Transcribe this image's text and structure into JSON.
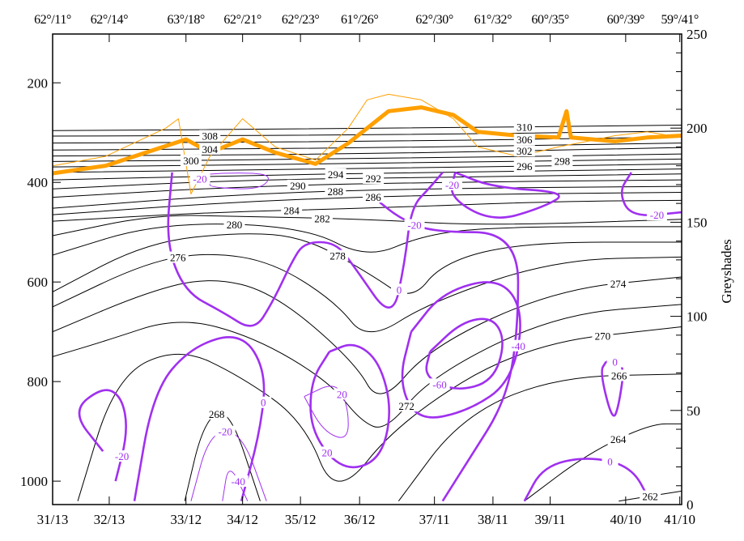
{
  "chart_data": {
    "type": "line",
    "title": "",
    "xlabel": "",
    "ylabel_left": "",
    "ylabel_right": "Greyshades",
    "x_tick_positions": [
      0,
      9,
      21.2,
      30.2,
      39.4,
      48.8,
      60.7,
      70,
      79.1,
      91.1,
      99.7
    ],
    "x_tick_labels": [
      "31/13",
      "32/13",
      "33/12",
      "34/12",
      "35/12",
      "36/12",
      "37/11",
      "38/11",
      "39/11",
      "40/10",
      "41/10"
    ],
    "top_tick_labels": [
      "62°/11°",
      "62°/14°",
      "63°/18°",
      "62°/21°",
      "62°/23°",
      "61°/26°",
      "62°/30°",
      "61°/32°",
      "60°/35°",
      "60°/39°",
      "59°/41°"
    ],
    "left_axis": {
      "range": [
        1047,
        102
      ],
      "ticks": [
        200,
        400,
        600,
        800,
        1000
      ]
    },
    "right_axis": {
      "range": [
        0,
        250
      ],
      "ticks": [
        0,
        50,
        100,
        150,
        200,
        250
      ]
    },
    "colors": {
      "theta": "#000000",
      "omega": "#a030f0",
      "orange": "#ffa000"
    },
    "isentropes": [
      {
        "value": 310,
        "li": 1,
        "pts": [
          [
            0,
            296
          ],
          [
            50,
            292
          ],
          [
            100,
            285
          ]
        ]
      },
      {
        "value": 308,
        "li": 0,
        "pts": [
          [
            0,
            307
          ],
          [
            50,
            305
          ],
          [
            100,
            297
          ]
        ]
      },
      {
        "value": 306,
        "li": 1,
        "pts": [
          [
            0,
            321
          ],
          [
            50,
            318
          ],
          [
            100,
            309
          ]
        ]
      },
      {
        "value": 304,
        "li": 0,
        "pts": [
          [
            0,
            335
          ],
          [
            50,
            331
          ],
          [
            100,
            321
          ]
        ]
      },
      {
        "value": 302,
        "li": 1,
        "pts": [
          [
            0,
            347
          ],
          [
            50,
            343
          ],
          [
            100,
            330
          ]
        ]
      },
      {
        "value": 300,
        "li": 0,
        "pts": [
          [
            0,
            358
          ],
          [
            50,
            353
          ],
          [
            100,
            343
          ]
        ]
      },
      {
        "value": 298,
        "li": 1,
        "pts": [
          [
            0,
            369
          ],
          [
            50,
            362
          ],
          [
            100,
            353
          ]
        ]
      },
      {
        "value": 296,
        "li": 2,
        "pts": [
          [
            0,
            380
          ],
          [
            50,
            372
          ],
          [
            100,
            363
          ]
        ]
      },
      {
        "value": 294,
        "li": 1,
        "pts": [
          [
            0,
            395
          ],
          [
            30,
            386
          ],
          [
            60,
            380
          ],
          [
            100,
            373
          ]
        ]
      },
      {
        "value": 292,
        "li": 1,
        "pts": [
          [
            0,
            413
          ],
          [
            30,
            395
          ],
          [
            60,
            390
          ],
          [
            100,
            383
          ]
        ]
      },
      {
        "value": 290,
        "li": 1,
        "pts": [
          [
            0,
            430
          ],
          [
            30,
            408
          ],
          [
            60,
            400
          ],
          [
            100,
            395
          ]
        ]
      },
      {
        "value": 288,
        "li": 1,
        "pts": [
          [
            0,
            452
          ],
          [
            30,
            423
          ],
          [
            60,
            412
          ],
          [
            100,
            408
          ]
        ]
      },
      {
        "value": 286,
        "li": 1,
        "pts": [
          [
            0,
            465
          ],
          [
            30,
            438
          ],
          [
            60,
            425
          ],
          [
            100,
            420
          ]
        ]
      },
      {
        "value": 284,
        "li": 1,
        "pts": [
          [
            0,
            478
          ],
          [
            25,
            460
          ],
          [
            50,
            452
          ],
          [
            80,
            438
          ],
          [
            100,
            436
          ]
        ]
      },
      {
        "value": 282,
        "li": 2,
        "pts": [
          [
            0,
            507
          ],
          [
            16,
            465
          ],
          [
            30,
            468
          ],
          [
            50,
            474
          ],
          [
            69,
            487
          ],
          [
            100,
            474
          ]
        ]
      },
      {
        "value": 280,
        "li": 1,
        "pts": [
          [
            0,
            546
          ],
          [
            17,
            480
          ],
          [
            40,
            488
          ],
          [
            50,
            554
          ],
          [
            59,
            505
          ],
          [
            71,
            489
          ],
          [
            100,
            489
          ]
        ]
      },
      {
        "value": 278,
        "li": 3,
        "pts": [
          [
            0,
            620
          ],
          [
            15,
            520
          ],
          [
            30,
            500
          ],
          [
            40,
            510
          ],
          [
            50,
            580
          ],
          [
            57,
            640
          ],
          [
            62,
            560
          ],
          [
            75,
            520
          ],
          [
            100,
            520
          ]
        ]
      },
      {
        "value": 276,
        "li": 1,
        "pts": [
          [
            0,
            650
          ],
          [
            15,
            560
          ],
          [
            25,
            540
          ],
          [
            35,
            560
          ],
          [
            45,
            640
          ],
          [
            50,
            720
          ],
          [
            60,
            640
          ],
          [
            80,
            555
          ],
          [
            100,
            550
          ]
        ]
      },
      {
        "value": 274,
        "li": 7,
        "pts": [
          [
            0,
            700
          ],
          [
            15,
            620
          ],
          [
            25,
            590
          ],
          [
            35,
            620
          ],
          [
            48,
            760
          ],
          [
            52,
            850
          ],
          [
            60,
            730
          ],
          [
            80,
            615
          ],
          [
            100,
            590
          ]
        ]
      },
      {
        "value": 272,
        "li": 6,
        "pts": [
          [
            0,
            750
          ],
          [
            8,
            720
          ],
          [
            20,
            670
          ],
          [
            32,
            710
          ],
          [
            44,
            800
          ],
          [
            49,
            880
          ],
          [
            53,
            900
          ],
          [
            60,
            790
          ],
          [
            80,
            665
          ],
          [
            100,
            645
          ]
        ]
      },
      {
        "value": 270,
        "li": 7,
        "pts": [
          [
            4,
            1040
          ],
          [
            10,
            790
          ],
          [
            20,
            730
          ],
          [
            30,
            790
          ],
          [
            40,
            880
          ],
          [
            45,
            1040
          ],
          [
            55,
            880
          ],
          [
            75,
            725
          ],
          [
            100,
            690
          ]
        ]
      },
      {
        "value": 268,
        "li": 1,
        "pts": [
          [
            21,
            1040
          ],
          [
            24,
            880
          ],
          [
            28,
            850
          ],
          [
            33,
            1040
          ]
        ]
      },
      {
        "value": 266,
        "li": 3,
        "pts": [
          [
            55,
            1040
          ],
          [
            65,
            870
          ],
          [
            80,
            790
          ],
          [
            100,
            785
          ]
        ]
      },
      {
        "value": 264,
        "li": 1,
        "pts": [
          [
            75,
            1040
          ],
          [
            85,
            945
          ],
          [
            95,
            885
          ],
          [
            100,
            885
          ]
        ]
      },
      {
        "value": 262,
        "li": 1,
        "pts": [
          [
            90,
            1040
          ],
          [
            100,
            1020
          ]
        ]
      }
    ],
    "omega_contours": [
      {
        "value": "0",
        "thick": true,
        "li": 10,
        "pts": [
          [
            19,
            380
          ],
          [
            18,
            520
          ],
          [
            21,
            620
          ],
          [
            27,
            660
          ],
          [
            32,
            700
          ],
          [
            35,
            640
          ],
          [
            38,
            560
          ],
          [
            40,
            520
          ],
          [
            45,
            520
          ],
          [
            48,
            570
          ],
          [
            54,
            680
          ],
          [
            56,
            560
          ],
          [
            57,
            450
          ],
          [
            60,
            410
          ],
          [
            62,
            380
          ]
        ]
      },
      {
        "value": "0",
        "thick": true,
        "li": 1,
        "pts": [
          [
            30,
            1040
          ],
          [
            33,
            900
          ],
          [
            34,
            780
          ],
          [
            30,
            700
          ],
          [
            22,
            730
          ],
          [
            16,
            820
          ],
          [
            13,
            1040
          ]
        ]
      },
      {
        "value": "-20",
        "thick": true,
        "li": 5,
        "pts": [
          [
            8,
            940
          ],
          [
            3,
            860
          ],
          [
            8,
            810
          ],
          [
            11,
            830
          ],
          [
            12,
            900
          ],
          [
            10,
            1000
          ]
        ]
      },
      {
        "value": "20",
        "thick": true,
        "li": 5,
        "pts": [
          [
            44,
            740
          ],
          [
            48,
            720
          ],
          [
            52,
            760
          ],
          [
            54,
            860
          ],
          [
            52,
            960
          ],
          [
            46,
            980
          ],
          [
            41,
            900
          ],
          [
            41,
            800
          ],
          [
            44,
            740
          ]
        ]
      },
      {
        "value": "-40",
        "thick": true,
        "li": 3,
        "pts": [
          [
            57,
            700
          ],
          [
            62,
            620
          ],
          [
            71,
            590
          ],
          [
            75,
            660
          ],
          [
            73,
            800
          ],
          [
            66,
            860
          ],
          [
            58,
            880
          ],
          [
            55,
            800
          ],
          [
            57,
            700
          ]
        ]
      },
      {
        "value": "-60",
        "thick": true,
        "li": 5,
        "pts": [
          [
            60,
            740
          ],
          [
            65,
            680
          ],
          [
            70,
            670
          ],
          [
            72,
            720
          ],
          [
            70,
            800
          ],
          [
            64,
            820
          ],
          [
            59,
            790
          ],
          [
            60,
            740
          ]
        ]
      },
      {
        "value": "-20",
        "thick": true,
        "li": 1,
        "pts": [
          [
            52,
            440
          ],
          [
            55,
            470
          ],
          [
            60,
            500
          ],
          [
            74,
            500
          ],
          [
            74,
            700
          ],
          [
            72,
            840
          ],
          [
            66,
            960
          ],
          [
            62,
            1040
          ]
        ]
      },
      {
        "value": "0",
        "thick": true,
        "li": 2,
        "pts": [
          [
            75,
            1040
          ],
          [
            78,
            970
          ],
          [
            85,
            950
          ],
          [
            92,
            970
          ],
          [
            95,
            1040
          ]
        ]
      },
      {
        "value": "0",
        "thick": true,
        "li": 0,
        "pts": [
          [
            88,
            760
          ],
          [
            91,
            760
          ],
          [
            90,
            850
          ],
          [
            89,
            880
          ],
          [
            87,
            780
          ],
          [
            88,
            760
          ]
        ]
      },
      {
        "value": "-20",
        "thick": true,
        "li": 2,
        "pts": [
          [
            92,
            380
          ],
          [
            90,
            420
          ],
          [
            92,
            470
          ],
          [
            100,
            460
          ]
        ]
      },
      {
        "value": "-20",
        "thick": true,
        "li": 0,
        "pts": [
          [
            64,
            380
          ],
          [
            63,
            430
          ],
          [
            70,
            480
          ],
          [
            78,
            450
          ],
          [
            82,
            420
          ],
          [
            70,
            410
          ],
          [
            64,
            380
          ]
        ]
      },
      {
        "value": "20",
        "thick": false,
        "li": 1,
        "pts": [
          [
            40,
            830
          ],
          [
            45,
            800
          ],
          [
            47,
            850
          ],
          [
            47,
            920
          ],
          [
            43,
            900
          ],
          [
            40,
            830
          ]
        ]
      },
      {
        "value": "-20",
        "thick": false,
        "li": 1,
        "pts": [
          [
            22,
            1040
          ],
          [
            25,
            900
          ],
          [
            30,
            900
          ],
          [
            34,
            1040
          ]
        ]
      },
      {
        "value": "-40",
        "thick": false,
        "li": 1,
        "pts": [
          [
            27,
            1040
          ],
          [
            28,
            960
          ],
          [
            31,
            1040
          ]
        ]
      },
      {
        "value": "-20",
        "thick": false,
        "li": 0,
        "pts": [
          [
            25,
            400
          ],
          [
            22,
            385
          ],
          [
            30,
            380
          ],
          [
            35,
            385
          ],
          [
            33,
            415
          ],
          [
            25,
            410
          ],
          [
            25,
            400
          ]
        ]
      }
    ],
    "orange_thick": {
      "x": [
        0,
        8.4,
        21.2,
        25,
        30.2,
        35.4,
        41.8,
        47,
        53.4,
        58.6,
        63.7,
        67.6,
        74,
        80.4,
        81.7,
        82.4,
        89.4,
        94.5,
        100
      ],
      "greyshade": [
        176,
        180,
        194,
        187,
        194,
        187,
        181,
        192,
        209,
        211,
        207,
        198,
        196,
        195,
        209,
        195,
        193,
        195,
        196
      ]
    },
    "orange_thin": {
      "x": [
        0,
        8.4,
        18,
        20,
        22,
        25,
        30.2,
        35.4,
        41.8,
        47,
        50,
        53.4,
        58.6,
        63.7,
        67.6,
        74,
        80.4,
        85,
        89.4,
        94.5,
        100
      ],
      "greyshade": [
        180,
        185,
        200,
        205,
        165,
        185,
        205,
        190,
        183,
        200,
        215,
        218,
        215,
        205,
        190,
        185,
        190,
        193,
        196,
        198,
        195
      ]
    }
  }
}
